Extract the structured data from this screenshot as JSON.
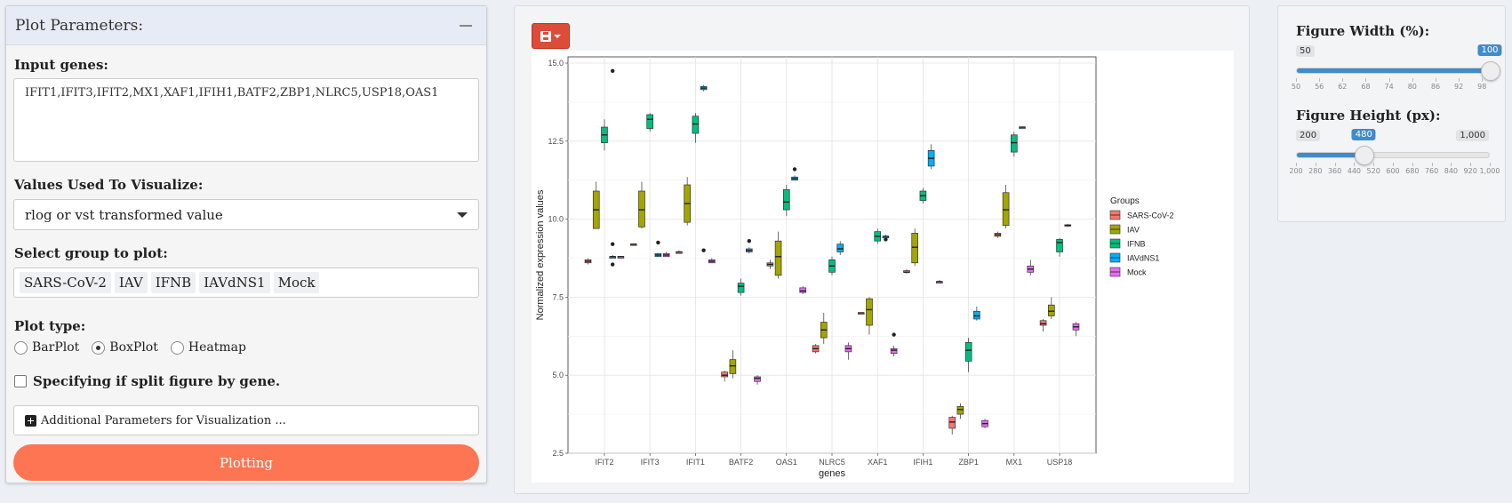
{
  "panel": {
    "title": "Plot Parameters:",
    "input_genes_label": "Input genes:",
    "input_genes_value": "IFIT1,IFIT3,IFIT2,MX1,XAF1,IFIH1,BATF2,ZBP1,NLRC5,USP18,OAS1",
    "values_label": "Values Used To Visualize:",
    "values_selected": "rlog or vst transformed value",
    "group_label": "Select group to plot:",
    "groups": [
      "SARS-CoV-2",
      "IAV",
      "IFNB",
      "IAVdNS1",
      "Mock"
    ],
    "plot_type_label": "Plot type:",
    "plot_types": [
      {
        "label": "BarPlot",
        "checked": false
      },
      {
        "label": "BoxPlot",
        "checked": true
      },
      {
        "label": "Heatmap",
        "checked": false
      }
    ],
    "split_label": "Specifying if split figure by gene.",
    "additional_label": "Additional Parameters for Visualization ...",
    "plot_button": "Plotting"
  },
  "right": {
    "width_label": "Figure Width (%):",
    "width_min": "50",
    "width_max": "100",
    "width_value": "100",
    "width_min_num": 50,
    "width_max_num": 100,
    "width_value_num": 100,
    "width_ticks": [
      "50",
      "56",
      "62",
      "68",
      "74",
      "80",
      "86",
      "92",
      "98"
    ],
    "height_label": "Figure Height (px):",
    "height_min": "200",
    "height_max": "1,000",
    "height_value": "480",
    "height_min_num": 200,
    "height_max_num": 1000,
    "height_value_num": 480,
    "height_ticks": [
      "200",
      "280",
      "360",
      "440",
      "520",
      "600",
      "680",
      "760",
      "840",
      "920",
      "1,000"
    ]
  },
  "chart_data": {
    "type": "box",
    "xlabel": "genes",
    "ylabel": "Normalized expression values",
    "ylim": [
      2.5,
      15.2
    ],
    "yticks": [
      "2.5",
      "5.0",
      "7.5",
      "10.0",
      "12.5",
      "15.0"
    ],
    "ytick_values": [
      2.5,
      5.0,
      7.5,
      10.0,
      12.5,
      15.0
    ],
    "categories": [
      "IFIT2",
      "IFIT3",
      "IFIT1",
      "BATF2",
      "OAS1",
      "NLRC5",
      "XAF1",
      "IFIH1",
      "ZBP1",
      "MX1",
      "USP18"
    ],
    "legend_title": "Groups",
    "grid": true,
    "legend_position": "right",
    "series": [
      {
        "name": "SARS-CoV-2",
        "color": "#f8766d",
        "boxes": [
          [
            8.55,
            8.6,
            8.65,
            8.7,
            8.75
          ],
          [
            9.2,
            9.2,
            9.2,
            9.2,
            9.2
          ],
          [
            8.9,
            8.9,
            8.95,
            8.95,
            9.0
          ],
          [
            4.8,
            4.95,
            5.0,
            5.1,
            5.15
          ],
          [
            8.4,
            8.5,
            8.55,
            8.6,
            8.7
          ],
          [
            5.7,
            5.75,
            5.85,
            5.95,
            6.0
          ],
          [
            7.0,
            7.0,
            7.0,
            7.0,
            7.0
          ],
          [
            8.25,
            8.3,
            8.3,
            8.35,
            8.4
          ],
          [
            3.1,
            3.3,
            3.5,
            3.65,
            3.7
          ],
          [
            9.4,
            9.45,
            9.5,
            9.55,
            9.6
          ],
          [
            6.4,
            6.6,
            6.65,
            6.75,
            6.8
          ]
        ]
      },
      {
        "name": "IAV",
        "color": "#a3a500",
        "boxes": [
          [
            9.7,
            9.7,
            10.3,
            10.9,
            11.2
          ],
          [
            9.7,
            9.75,
            10.3,
            10.9,
            11.2
          ],
          [
            9.8,
            9.9,
            10.5,
            11.1,
            11.35
          ],
          [
            4.9,
            5.05,
            5.3,
            5.5,
            5.8
          ],
          [
            8.1,
            8.2,
            8.8,
            9.3,
            9.6
          ],
          [
            6.0,
            6.2,
            6.45,
            6.7,
            7.0
          ],
          [
            6.3,
            6.6,
            7.1,
            7.45,
            7.5
          ],
          [
            8.5,
            8.6,
            9.1,
            9.55,
            9.7
          ],
          [
            3.6,
            3.75,
            3.9,
            4.0,
            4.1
          ],
          [
            9.7,
            9.8,
            10.3,
            10.85,
            11.1
          ],
          [
            6.8,
            6.9,
            7.05,
            7.25,
            7.5
          ]
        ],
        "outliers": [
          [],
          [],
          [],
          [],
          [],
          [],
          [],
          [],
          [],
          [],
          []
        ]
      },
      {
        "name": "IFNB",
        "color": "#00bf7d",
        "boxes": [
          [
            12.2,
            12.45,
            12.7,
            12.95,
            13.2
          ],
          [
            12.8,
            12.9,
            13.2,
            13.35,
            13.4
          ],
          [
            12.45,
            12.75,
            13.05,
            13.3,
            13.4
          ],
          [
            7.55,
            7.65,
            7.85,
            7.95,
            8.1
          ],
          [
            10.1,
            10.3,
            10.55,
            10.95,
            11.1
          ],
          [
            8.2,
            8.3,
            8.5,
            8.7,
            8.8
          ],
          [
            9.2,
            9.3,
            9.45,
            9.6,
            9.7
          ],
          [
            10.5,
            10.6,
            10.75,
            10.9,
            11.0
          ],
          [
            5.1,
            5.45,
            5.8,
            6.05,
            6.2
          ],
          [
            12.0,
            12.15,
            12.45,
            12.7,
            12.8
          ],
          [
            8.8,
            8.95,
            9.25,
            9.35,
            9.4
          ]
        ]
      },
      {
        "name": "IAVdNS1",
        "color": "#00b0f6",
        "boxes": [
          [
            8.75,
            8.75,
            8.8,
            8.8,
            8.85
          ],
          [
            8.8,
            8.8,
            8.85,
            8.9,
            8.9
          ],
          [
            14.1,
            14.15,
            14.2,
            14.25,
            14.3
          ],
          [
            8.9,
            8.95,
            9.0,
            9.05,
            9.1
          ],
          [
            11.25,
            11.25,
            11.3,
            11.35,
            11.4
          ],
          [
            8.85,
            8.95,
            9.05,
            9.2,
            9.3
          ],
          [
            9.35,
            9.4,
            9.45,
            9.45,
            9.5
          ],
          [
            11.6,
            11.7,
            11.95,
            12.2,
            12.4
          ],
          [
            6.75,
            6.8,
            6.9,
            7.05,
            7.2
          ],
          [
            12.95,
            12.95,
            12.95,
            12.95,
            12.95
          ],
          [
            9.75,
            9.78,
            9.8,
            9.82,
            9.85
          ]
        ]
      },
      {
        "name": "Mock",
        "color": "#e76bf3",
        "boxes": [
          [
            8.75,
            8.75,
            8.8,
            8.8,
            8.8
          ],
          [
            8.8,
            8.8,
            8.85,
            8.9,
            8.95
          ],
          [
            8.6,
            8.6,
            8.65,
            8.7,
            8.75
          ],
          [
            4.7,
            4.8,
            4.9,
            4.95,
            5.0
          ],
          [
            7.6,
            7.65,
            7.7,
            7.8,
            7.85
          ],
          [
            5.5,
            5.75,
            5.85,
            5.95,
            6.05
          ],
          [
            5.6,
            5.7,
            5.8,
            5.85,
            5.95
          ],
          [
            7.95,
            7.95,
            8.0,
            8.0,
            8.05
          ],
          [
            3.3,
            3.35,
            3.45,
            3.55,
            3.6
          ],
          [
            8.2,
            8.3,
            8.4,
            8.5,
            8.7
          ],
          [
            6.25,
            6.45,
            6.55,
            6.65,
            6.7
          ]
        ]
      }
    ],
    "dots": [
      {
        "gene": "IFIT2",
        "group": "IFNB-right",
        "value": 14.75
      },
      {
        "gene": "IFIT2",
        "group": "IAVdNS1-mock",
        "value": 8.55
      },
      {
        "gene": "IFIT2",
        "group": "IAVdNS1-mock",
        "value": 9.2
      },
      {
        "gene": "IFIT3",
        "group": "IAVdNS1",
        "value": 9.25
      },
      {
        "gene": "IFIT1",
        "group": "IAVdNS1-mock",
        "value": 9.0
      },
      {
        "gene": "BATF2",
        "group": "IAVdNS1",
        "value": 9.3
      },
      {
        "gene": "OAS1",
        "group": "IAVdNS1",
        "value": 11.6
      },
      {
        "gene": "XAF1",
        "group": "IAVdNS1",
        "value": 9.35
      },
      {
        "gene": "XAF1",
        "group": "Mock",
        "value": 6.3
      }
    ]
  }
}
